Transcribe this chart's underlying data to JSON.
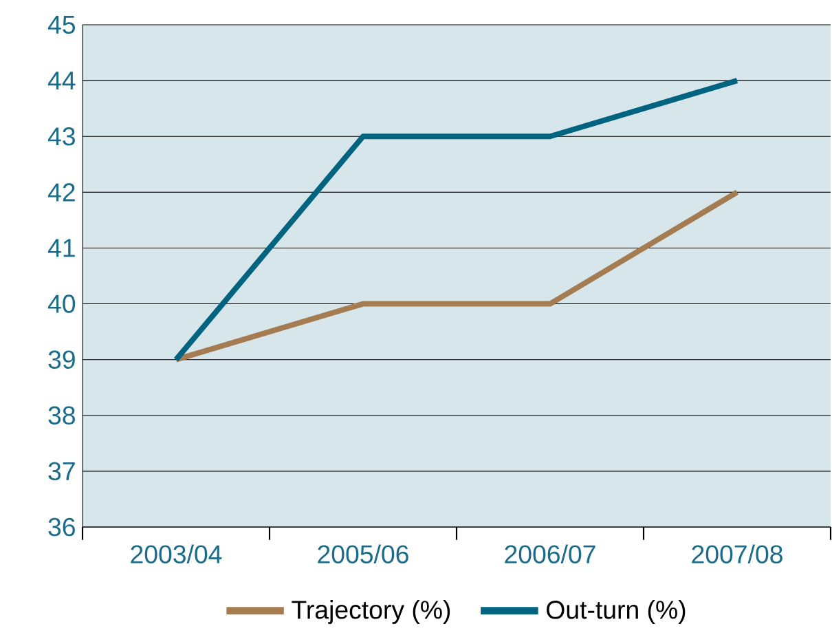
{
  "chart_data": {
    "type": "line",
    "categories": [
      "2003/04",
      "2005/06",
      "2006/07",
      "2007/08"
    ],
    "series": [
      {
        "name": "Trajectory (%)",
        "color": "#a57c52",
        "values": [
          39,
          40,
          40,
          42
        ]
      },
      {
        "name": "Out-turn (%)",
        "color": "#006480",
        "values": [
          39,
          43,
          43,
          44
        ]
      }
    ],
    "ylim": [
      36,
      45
    ],
    "yticks": [
      36,
      37,
      38,
      39,
      40,
      41,
      42,
      43,
      44,
      45
    ],
    "grid": "y",
    "legend": "bottom",
    "marker": "none",
    "line_style": "solid"
  }
}
